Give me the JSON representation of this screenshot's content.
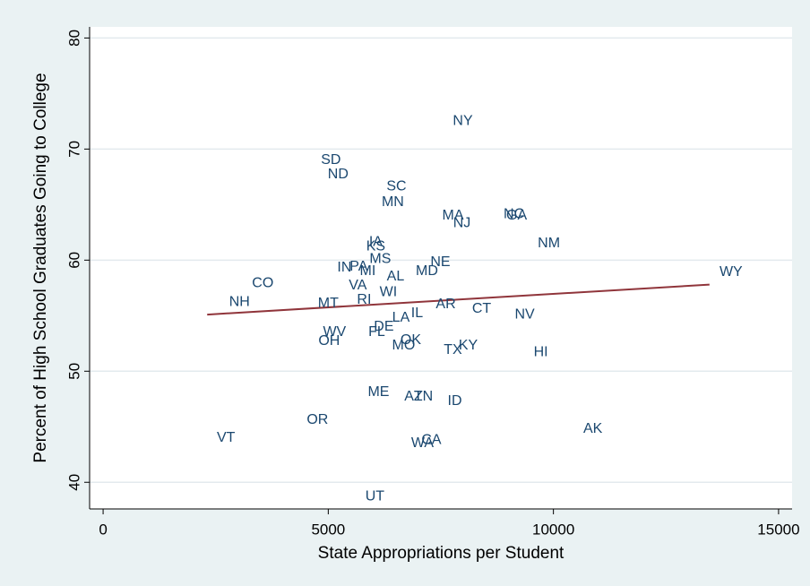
{
  "chart_data": {
    "type": "scatter",
    "x_label": "State Appropriations per Student",
    "y_label": "Percent of High School Graduates Going to College",
    "labels": [
      "NY",
      "SD",
      "ND",
      "SC",
      "MN",
      "MA",
      "NJ",
      "NC",
      "GA",
      "NM",
      "IA",
      "KS",
      "MS",
      "IN",
      "PA",
      "MI",
      "AL",
      "MD",
      "NE",
      "CO",
      "VA",
      "WI",
      "WY",
      "NH",
      "MT",
      "RI",
      "AR",
      "CT",
      "NV",
      "IL",
      "LA",
      "DE",
      "FL",
      "WV",
      "OH",
      "OK",
      "MO",
      "TX",
      "KY",
      "HI",
      "ME",
      "AZ",
      "TN",
      "ID",
      "OR",
      "AK",
      "VT",
      "WA",
      "CA",
      "UT"
    ],
    "x": [
      7988,
      5060,
      5219,
      6514,
      6434,
      7769,
      7968,
      9124,
      9183,
      9900,
      6056,
      6056,
      6155,
      5359,
      5677,
      5876,
      6494,
      7191,
      7490,
      3546,
      5657,
      6335,
      13944,
      3028,
      5000,
      5797,
      7610,
      8406,
      9363,
      6972,
      6614,
      6235,
      6076,
      5139,
      5020,
      6833,
      6673,
      7769,
      8108,
      9721,
      6116,
      6892,
      7112,
      7809,
      4761,
      10876,
      2729,
      7092,
      7291,
      6036
    ],
    "y": [
      72.5,
      69.0,
      67.7,
      66.6,
      65.2,
      64.0,
      63.3,
      64.1,
      64.0,
      61.5,
      61.6,
      61.2,
      60.1,
      59.3,
      59.4,
      59.0,
      58.5,
      59.0,
      59.8,
      57.9,
      57.7,
      57.1,
      58.9,
      56.2,
      56.1,
      56.4,
      56.0,
      55.6,
      55.1,
      55.2,
      54.8,
      54.0,
      53.5,
      53.5,
      52.7,
      52.8,
      52.3,
      51.9,
      52.3,
      51.7,
      48.1,
      47.7,
      47.7,
      47.3,
      45.6,
      44.8,
      44.0,
      43.5,
      43.8,
      38.7
    ],
    "color": "#1a476f",
    "fit": {
      "x": [
        2311,
        13466
      ],
      "y": [
        55.1,
        57.8
      ],
      "color": "#90353b"
    },
    "xlim": [
      -300,
      15300
    ],
    "ylim": [
      37.6,
      81
    ],
    "xticks": [
      0,
      5000,
      10000,
      15000
    ],
    "yticks": [
      40,
      50,
      60,
      70,
      80
    ],
    "grid": true
  }
}
